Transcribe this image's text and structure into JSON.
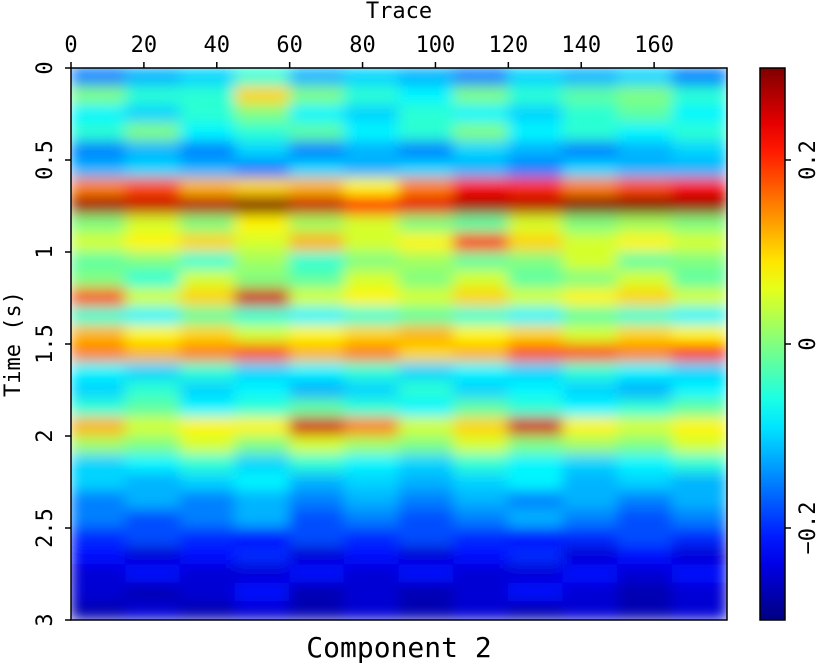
{
  "chart_data": {
    "type": "heatmap",
    "title": "Component 2",
    "x_label": "Trace",
    "y_label": "Time (s)",
    "xlim": [
      0,
      180
    ],
    "ylim": [
      0,
      3
    ],
    "y_inverted": true,
    "xticks": [
      0,
      20,
      40,
      60,
      80,
      100,
      120,
      140,
      160
    ],
    "yticks": [
      0,
      0.5,
      1,
      1.5,
      2,
      2.5,
      3
    ],
    "colormap": "jet",
    "clim": [
      -0.3,
      0.3
    ],
    "cticks": [
      0.2,
      0,
      {
        "value": -0.2,
        "label": "−0.2"
      }
    ],
    "z": [
      [
        -0.15,
        -0.12,
        -0.1,
        -0.05,
        -0.12,
        -0.1,
        -0.12,
        -0.15,
        -0.1,
        -0.12,
        -0.1,
        -0.15
      ],
      [
        0.0,
        -0.05,
        -0.05,
        0.1,
        0.0,
        -0.05,
        -0.08,
        0.0,
        -0.05,
        -0.02,
        0.0,
        -0.05
      ],
      [
        -0.08,
        -0.1,
        -0.05,
        0.0,
        -0.08,
        -0.1,
        -0.05,
        -0.08,
        -0.1,
        -0.05,
        -0.02,
        -0.08
      ],
      [
        -0.05,
        0.0,
        -0.08,
        -0.05,
        -0.02,
        -0.08,
        -0.05,
        0.0,
        -0.08,
        -0.05,
        -0.08,
        -0.05
      ],
      [
        -0.15,
        -0.12,
        -0.15,
        -0.1,
        -0.15,
        -0.12,
        -0.15,
        -0.1,
        -0.12,
        -0.15,
        -0.12,
        -0.1
      ],
      [
        -0.12,
        -0.1,
        -0.12,
        -0.15,
        -0.1,
        -0.12,
        -0.1,
        -0.12,
        -0.15,
        -0.1,
        -0.12,
        -0.12
      ],
      [
        0.15,
        0.18,
        0.12,
        0.1,
        0.12,
        0.08,
        0.15,
        0.22,
        0.2,
        0.15,
        0.18,
        0.22
      ],
      [
        0.28,
        0.26,
        0.27,
        0.3,
        0.26,
        0.22,
        0.24,
        0.28,
        0.27,
        0.3,
        0.3,
        0.29
      ],
      [
        0.0,
        0.05,
        0.0,
        0.08,
        0.02,
        0.05,
        0.0,
        -0.02,
        0.05,
        0.0,
        0.02,
        0.0
      ],
      [
        0.05,
        0.08,
        0.1,
        0.05,
        0.12,
        0.05,
        0.08,
        0.2,
        0.1,
        0.05,
        0.08,
        0.05
      ],
      [
        -0.02,
        0.0,
        -0.05,
        0.02,
        -0.05,
        0.0,
        0.02,
        -0.02,
        0.0,
        0.05,
        -0.02,
        0.0
      ],
      [
        0.0,
        -0.05,
        0.05,
        0.0,
        -0.02,
        0.05,
        0.0,
        0.05,
        -0.02,
        0.0,
        0.05,
        -0.02
      ],
      [
        0.18,
        0.05,
        0.1,
        0.25,
        0.05,
        0.08,
        0.05,
        0.1,
        0.05,
        0.08,
        0.1,
        0.05
      ],
      [
        -0.05,
        -0.08,
        -0.02,
        -0.05,
        -0.08,
        -0.05,
        -0.02,
        -0.05,
        -0.08,
        -0.02,
        -0.05,
        -0.08
      ],
      [
        0.12,
        0.08,
        0.1,
        0.05,
        0.08,
        0.1,
        0.12,
        0.08,
        0.1,
        0.05,
        0.1,
        0.08
      ],
      [
        0.15,
        0.12,
        0.15,
        0.18,
        0.12,
        0.15,
        0.1,
        0.12,
        0.18,
        0.18,
        0.15,
        0.2
      ],
      [
        -0.08,
        -0.1,
        -0.05,
        -0.1,
        -0.08,
        -0.05,
        -0.1,
        -0.08,
        -0.1,
        -0.05,
        -0.08,
        -0.1
      ],
      [
        -0.1,
        -0.05,
        -0.1,
        -0.08,
        -0.12,
        -0.1,
        -0.05,
        -0.1,
        -0.08,
        -0.1,
        -0.12,
        -0.08
      ],
      [
        -0.05,
        -0.02,
        -0.08,
        -0.05,
        -0.02,
        -0.05,
        -0.08,
        -0.02,
        -0.05,
        -0.08,
        -0.05,
        -0.02
      ],
      [
        0.12,
        0.05,
        0.08,
        0.08,
        0.25,
        0.15,
        0.05,
        0.1,
        0.25,
        0.08,
        0.05,
        0.08
      ],
      [
        0.02,
        0.0,
        0.05,
        0.0,
        0.05,
        0.02,
        0.0,
        0.05,
        0.0,
        0.02,
        0.0,
        0.05
      ],
      [
        -0.1,
        -0.08,
        -0.05,
        -0.1,
        -0.05,
        -0.08,
        -0.1,
        -0.05,
        -0.08,
        -0.1,
        -0.08,
        -0.05
      ],
      [
        -0.1,
        -0.12,
        -0.1,
        -0.08,
        -0.12,
        -0.1,
        -0.12,
        -0.1,
        -0.08,
        -0.12,
        -0.1,
        -0.12
      ],
      [
        -0.15,
        -0.12,
        -0.15,
        -0.12,
        -0.15,
        -0.12,
        -0.15,
        -0.12,
        -0.15,
        -0.12,
        -0.15,
        -0.12
      ],
      [
        -0.15,
        -0.18,
        -0.15,
        -0.12,
        -0.18,
        -0.15,
        -0.18,
        -0.15,
        -0.12,
        -0.15,
        -0.18,
        -0.15
      ],
      [
        -0.2,
        -0.18,
        -0.2,
        -0.22,
        -0.18,
        -0.2,
        -0.18,
        -0.2,
        -0.22,
        -0.2,
        -0.18,
        -0.2
      ],
      [
        -0.22,
        -0.25,
        -0.22,
        -0.2,
        -0.25,
        -0.22,
        -0.25,
        -0.22,
        -0.2,
        -0.25,
        -0.22,
        -0.25
      ],
      [
        -0.25,
        -0.22,
        -0.25,
        -0.25,
        -0.22,
        -0.25,
        -0.22,
        -0.25,
        -0.25,
        -0.22,
        -0.25,
        -0.22
      ],
      [
        -0.25,
        -0.27,
        -0.25,
        -0.22,
        -0.27,
        -0.25,
        -0.27,
        -0.25,
        -0.22,
        -0.25,
        -0.27,
        -0.25
      ],
      [
        -0.27,
        -0.25,
        -0.27,
        -0.25,
        -0.27,
        -0.25,
        -0.27,
        -0.25,
        -0.27,
        -0.25,
        -0.27,
        -0.25
      ]
    ]
  }
}
